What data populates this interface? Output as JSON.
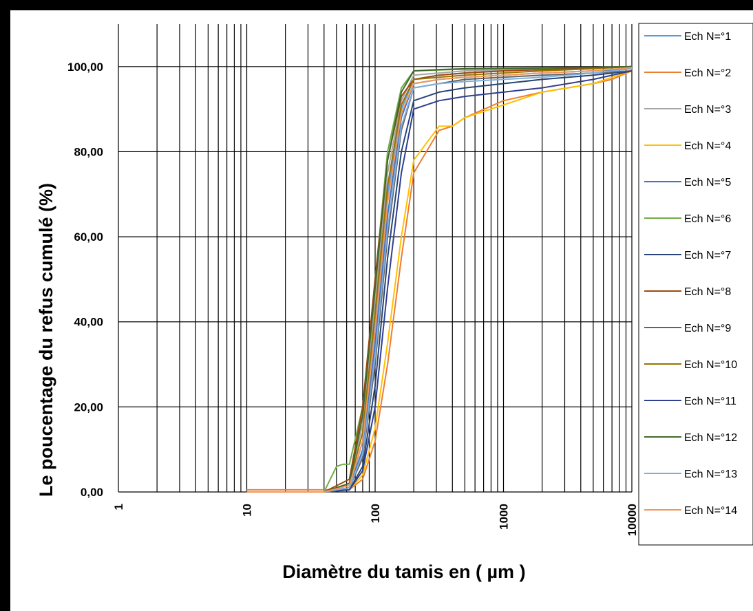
{
  "chart_data": {
    "type": "line",
    "title": "",
    "xlabel": "Diamètre du tamis en ( µm )",
    "ylabel": "Le  poucentage du refus cumulé (%)",
    "x_scale": "log",
    "xlim": [
      1,
      10000
    ],
    "ylim": [
      0,
      110
    ],
    "x_ticks": [
      "1",
      "10",
      "100",
      "1000",
      "10000"
    ],
    "y_ticks": [
      "0,00",
      "20,00",
      "40,00",
      "60,00",
      "80,00",
      "100,00"
    ],
    "grid": true,
    "legend_position": "right",
    "series": [
      {
        "name": "Ech N=°1",
        "color": "#5b9bd5",
        "x": [
          10,
          40,
          63,
          80,
          100,
          125,
          160,
          200,
          315,
          500,
          1000,
          2000,
          5000,
          10000
        ],
        "y": [
          0,
          0,
          1,
          12,
          40,
          70,
          90,
          97,
          98,
          98.5,
          99,
          99.3,
          99.6,
          100
        ]
      },
      {
        "name": "Ech N=°2",
        "color": "#ed7d31",
        "x": [
          10,
          40,
          63,
          80,
          100,
          125,
          160,
          200,
          315,
          400,
          500,
          1000,
          2000,
          5000,
          7000,
          10000
        ],
        "y": [
          0.5,
          0.5,
          0.5,
          3,
          12,
          30,
          55,
          75,
          85,
          86,
          88,
          92,
          94,
          96,
          97,
          99
        ]
      },
      {
        "name": "Ech N=°3",
        "color": "#a5a5a5",
        "x": [
          10,
          40,
          63,
          80,
          100,
          125,
          160,
          200,
          315,
          500,
          1000,
          2000,
          5000,
          10000
        ],
        "y": [
          0,
          0,
          2,
          16,
          45,
          75,
          92,
          98,
          98.5,
          99,
          99.2,
          99.4,
          99.6,
          100
        ]
      },
      {
        "name": "Ech N=°4",
        "color": "#ffc000",
        "x": [
          10,
          40,
          63,
          80,
          100,
          125,
          160,
          200,
          315,
          400,
          500,
          1000,
          2000,
          5000,
          10000
        ],
        "y": [
          0,
          0,
          0.5,
          4,
          15,
          35,
          60,
          78,
          86,
          86,
          88,
          91,
          94,
          96,
          99
        ]
      },
      {
        "name": "Ech N=°5",
        "color": "#4472c4",
        "x": [
          10,
          40,
          63,
          80,
          100,
          125,
          160,
          200,
          315,
          500,
          1000,
          2000,
          5000,
          10000
        ],
        "y": [
          0,
          0,
          1,
          10,
          35,
          65,
          88,
          96,
          97,
          97.5,
          98,
          98.5,
          99,
          99.5
        ]
      },
      {
        "name": "Ech N=°6",
        "color": "#70ad47",
        "x": [
          10,
          40,
          50,
          56,
          63,
          80,
          100,
          125,
          160,
          200,
          315,
          500,
          1000,
          2000,
          5000,
          10000
        ],
        "y": [
          0,
          0,
          6,
          6.5,
          6.5,
          20,
          50,
          80,
          95,
          99,
          99.2,
          99.4,
          99.5,
          99.6,
          99.8,
          100
        ]
      },
      {
        "name": "Ech N=°7",
        "color": "#264478",
        "x": [
          10,
          40,
          63,
          80,
          100,
          125,
          160,
          200,
          315,
          500,
          1000,
          2000,
          5000,
          10000
        ],
        "y": [
          0,
          0,
          0.5,
          6,
          25,
          55,
          80,
          92,
          94,
          95,
          96,
          97,
          98,
          99
        ]
      },
      {
        "name": "Ech N=°8",
        "color": "#9e480e",
        "x": [
          10,
          40,
          63,
          80,
          100,
          125,
          160,
          200,
          315,
          500,
          1000,
          2000,
          5000,
          10000
        ],
        "y": [
          0,
          0,
          3,
          20,
          50,
          78,
          93,
          97,
          98,
          98.5,
          99,
          99.3,
          99.6,
          100
        ]
      },
      {
        "name": "Ech N=°9",
        "color": "#636363",
        "x": [
          10,
          40,
          63,
          80,
          100,
          125,
          160,
          200,
          315,
          500,
          1000,
          2000,
          5000,
          10000
        ],
        "y": [
          0,
          0,
          1,
          8,
          30,
          60,
          85,
          95,
          96,
          97,
          97.5,
          98,
          98.5,
          99
        ]
      },
      {
        "name": "Ech N=°10",
        "color": "#997300",
        "x": [
          10,
          40,
          63,
          80,
          100,
          125,
          160,
          200,
          315,
          500,
          1000,
          2000,
          5000,
          10000
        ],
        "y": [
          0,
          0,
          2,
          14,
          42,
          72,
          91,
          97,
          97.5,
          98,
          98.5,
          99,
          99.5,
          100
        ]
      },
      {
        "name": "Ech N=°11",
        "color": "#2f3f8f",
        "x": [
          10,
          40,
          63,
          80,
          100,
          125,
          160,
          200,
          315,
          500,
          1000,
          2000,
          5000,
          10000
        ],
        "y": [
          0,
          0,
          0.5,
          5,
          20,
          48,
          75,
          90,
          92,
          93,
          94,
          95,
          97,
          99
        ]
      },
      {
        "name": "Ech N=°12",
        "color": "#43682b",
        "x": [
          10,
          40,
          63,
          80,
          100,
          125,
          160,
          200,
          315,
          500,
          1000,
          2000,
          5000,
          10000
        ],
        "y": [
          0,
          0,
          2,
          18,
          48,
          78,
          94,
          99,
          99.3,
          99.5,
          99.6,
          99.7,
          99.8,
          100
        ]
      },
      {
        "name": "Ech N=°13",
        "color": "#7cafdd",
        "x": [
          10,
          40,
          63,
          80,
          100,
          125,
          160,
          200,
          315,
          500,
          1000,
          2000,
          5000,
          10000
        ],
        "y": [
          0,
          0,
          1,
          9,
          32,
          62,
          86,
          95,
          96,
          96.5,
          97,
          97.5,
          98.5,
          99.5
        ]
      },
      {
        "name": "Ech N=°14",
        "color": "#f1975a",
        "x": [
          10,
          40,
          63,
          80,
          100,
          125,
          160,
          200,
          315,
          500,
          1000,
          2000,
          5000,
          10000
        ],
        "y": [
          0,
          0,
          1.5,
          12,
          38,
          68,
          89,
          96,
          97,
          97.5,
          98,
          98.5,
          99,
          99.8
        ]
      }
    ]
  }
}
